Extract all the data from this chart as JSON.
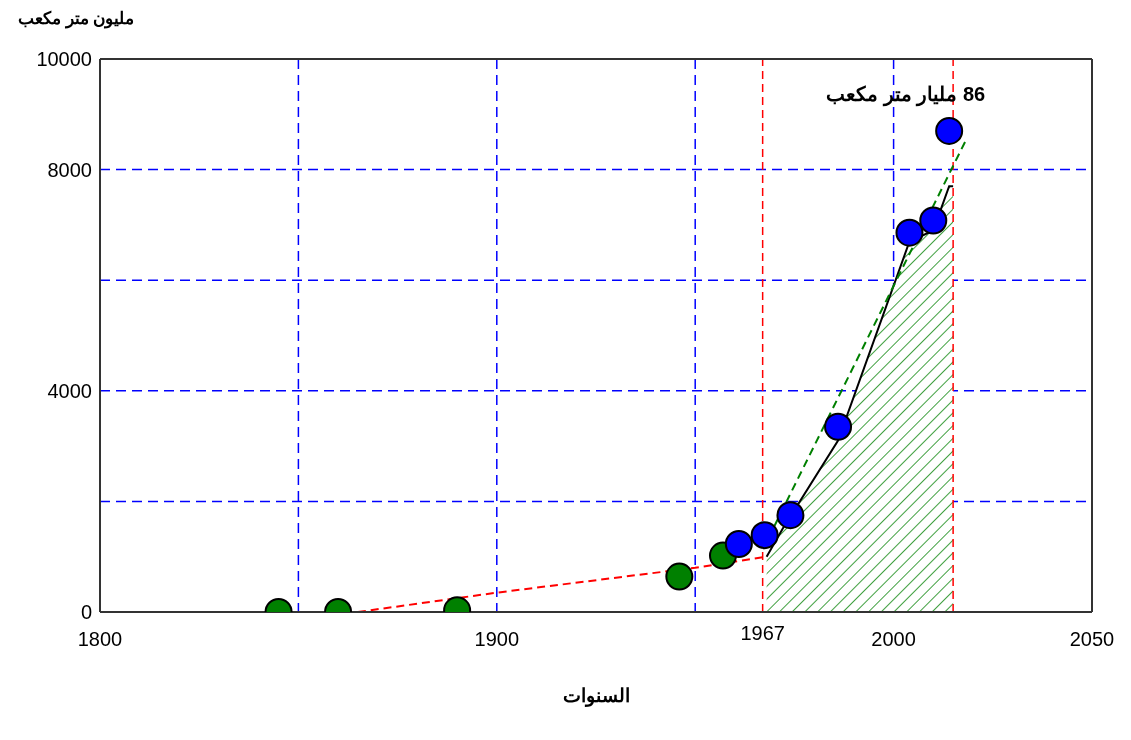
{
  "chart_data": {
    "type": "scatter",
    "xlabel": "السنوات",
    "ylabel": "مليون متر مكعب",
    "xlim": [
      1800,
      2050
    ],
    "ylim": [
      0,
      10000
    ],
    "xticks": [
      1800,
      {
        "value": 1850,
        "label": null
      },
      1900,
      {
        "value": 1950,
        "label": null
      },
      2000,
      2050
    ],
    "yticks": [
      0,
      {
        "value": 2000,
        "label": null
      },
      4000,
      {
        "value": 6000,
        "label": null
      },
      8000,
      10000
    ],
    "grid": true,
    "legend": false,
    "series": [
      {
        "type": "area",
        "color": "#008000",
        "x": [
          1968,
          1968,
          1972,
          1986,
          2004,
          2010,
          2014,
          2015
        ],
        "values": [
          1000,
          1000,
          1500,
          3100,
          6700,
          6900,
          7700,
          7700
        ]
      },
      {
        "type": "line",
        "color": "#ff0000",
        "line_style": "dashed",
        "x": [
          1865,
          1900,
          1950,
          1967
        ],
        "values": [
          0,
          350,
          800,
          990
        ]
      },
      {
        "type": "line",
        "color": "#008000",
        "line_style": "dashed",
        "x": [
          1970,
          2018
        ],
        "values": [
          1560,
          8500
        ]
      },
      {
        "marker": "circle",
        "color": "#008000",
        "x": [
          1845,
          1860,
          1890,
          1946,
          1957
        ],
        "values": [
          0,
          0,
          30,
          640,
          1020
        ]
      },
      {
        "marker": "circle",
        "color": "#0000ff",
        "x": [
          1961,
          1967.5,
          1974,
          1986,
          2004,
          2010,
          2014
        ],
        "values": [
          1230,
          1390,
          1750,
          3350,
          6860,
          7080,
          8700
        ]
      }
    ],
    "ref_lines": [
      {
        "axis": "x",
        "value": 1967,
        "label": "1967",
        "color": "#ff0000",
        "line_style": "dashed"
      },
      {
        "axis": "x",
        "value": 2015,
        "color": "#ff0000",
        "line_style": "dashed"
      }
    ],
    "annotations": [
      {
        "text": "86 مليار متر مكعب",
        "x": 2014,
        "y": 8700
      }
    ]
  }
}
